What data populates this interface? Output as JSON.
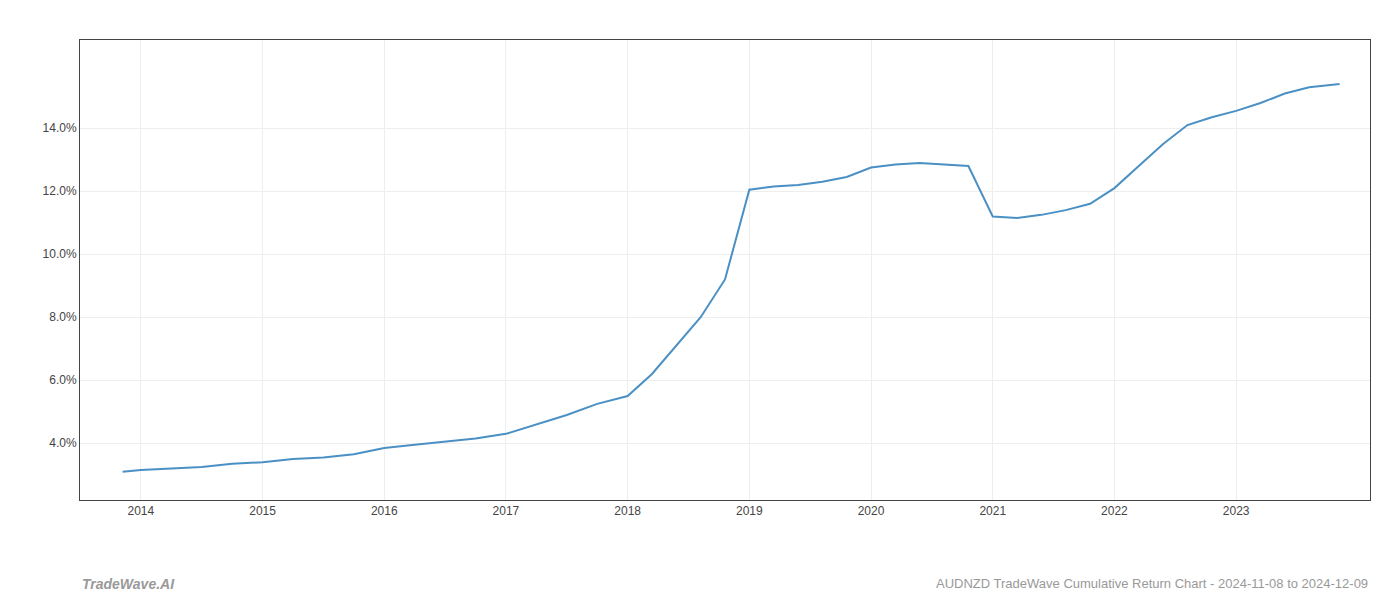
{
  "chart_data": {
    "type": "line",
    "title": "AUDNZD TradeWave Cumulative Return Chart - 2024-11-08 to 2024-12-09",
    "annotations": [
      "TradeWave.AI"
    ],
    "color": "#4a90c4",
    "x": [
      2013.85,
      2014.0,
      2014.25,
      2014.5,
      2014.75,
      2015.0,
      2015.25,
      2015.5,
      2015.75,
      2016.0,
      2016.25,
      2016.5,
      2016.75,
      2017.0,
      2017.25,
      2017.5,
      2017.75,
      2018.0,
      2018.2,
      2018.4,
      2018.6,
      2018.8,
      2019.0,
      2019.2,
      2019.4,
      2019.6,
      2019.8,
      2020.0,
      2020.2,
      2020.4,
      2020.6,
      2020.8,
      2021.0,
      2021.2,
      2021.4,
      2021.6,
      2021.8,
      2022.0,
      2022.2,
      2022.4,
      2022.6,
      2022.8,
      2023.0,
      2023.2,
      2023.4,
      2023.6,
      2023.85
    ],
    "values": [
      3.1,
      3.15,
      3.2,
      3.25,
      3.35,
      3.4,
      3.5,
      3.55,
      3.65,
      3.85,
      3.95,
      4.05,
      4.15,
      4.3,
      4.6,
      4.9,
      5.25,
      5.5,
      6.2,
      7.1,
      8.0,
      9.2,
      12.05,
      12.15,
      12.2,
      12.3,
      12.45,
      12.75,
      12.85,
      12.9,
      12.85,
      12.8,
      11.2,
      11.15,
      11.25,
      11.4,
      11.6,
      12.1,
      12.8,
      13.5,
      14.1,
      14.35,
      14.55,
      14.8,
      15.1,
      15.3,
      15.4
    ],
    "xlim": [
      2013.5,
      2024.1
    ],
    "ylim": [
      2.2,
      16.8
    ],
    "xticks": [
      2014,
      2015,
      2016,
      2017,
      2018,
      2019,
      2020,
      2021,
      2022,
      2023
    ],
    "yticks": [
      {
        "value": 4.0,
        "label": "4.0%"
      },
      {
        "value": 6.0,
        "label": "6.0%"
      },
      {
        "value": 8.0,
        "label": "8.0%"
      },
      {
        "value": 10.0,
        "label": "10.0%"
      },
      {
        "value": 12.0,
        "label": "12.0%"
      },
      {
        "value": 14.0,
        "label": "14.0%"
      }
    ],
    "grid": true
  }
}
